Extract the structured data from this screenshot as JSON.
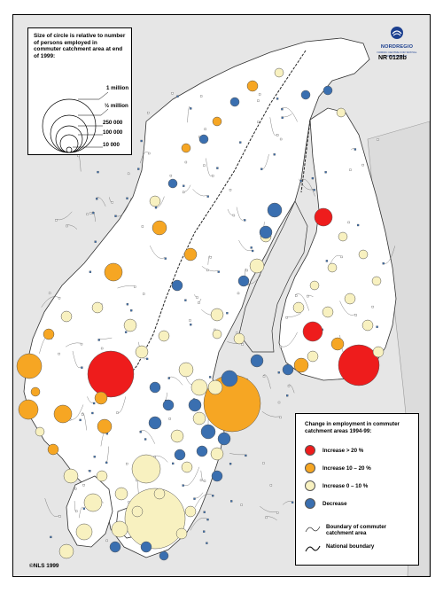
{
  "map": {
    "copyright": "©NLS 1999",
    "code": "NR 0128b",
    "logo": {
      "name": "NORDREGIO",
      "tagline": "NORDIC CENTRE FOR SPATIAL DEVELOPMENT"
    },
    "colors": {
      "sea": "#e6e6e6",
      "land": "#ffffff",
      "neighbour": "#e6e6e6",
      "boundary": "#333333",
      "increase_high": "#ee1c1c",
      "increase_mid": "#f6a623",
      "increase_low": "#f8f1c0",
      "decrease": "#3a6fb0"
    },
    "size_legend": {
      "title": "Size of circle is relative to number of persons employed in commuter catchment area at end of 1999:",
      "labels": [
        "1 million",
        "½ million",
        "250 000",
        "100 000",
        "10 000"
      ],
      "values": [
        1000000,
        500000,
        250000,
        100000,
        10000
      ]
    },
    "color_legend": {
      "title": "Change in employment in commuter catchment areas 1994-99:",
      "items": [
        {
          "label": "Increase > 20 %",
          "color_key": "increase_high"
        },
        {
          "label": "Increase 10 – 20 %",
          "color_key": "increase_mid"
        },
        {
          "label": "Increase 0 – 10 %",
          "color_key": "increase_low"
        },
        {
          "label": "Decrease",
          "color_key": "decrease"
        }
      ],
      "lines": [
        {
          "label": "Boundary of commuter catchment area",
          "icon": "thin-boundary-line-icon"
        },
        {
          "label": "National boundary",
          "icon": "national-boundary-line-icon"
        }
      ]
    }
  }
}
